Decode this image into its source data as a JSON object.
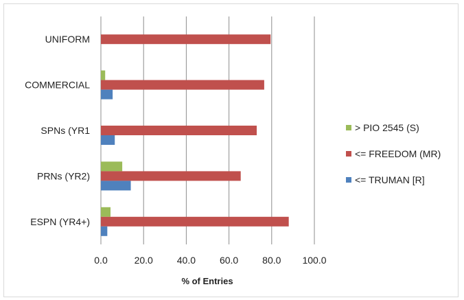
{
  "chart_data": {
    "type": "bar",
    "orientation": "horizontal",
    "categories": [
      "UNIFORM",
      "COMMERCIAL",
      "SPNs (YR1",
      "PRNs (YR2)",
      "ESPN (YR4+)"
    ],
    "series": [
      {
        "name": "> PIO 2545 (S)",
        "color": "#9bbb59",
        "values": [
          0,
          2,
          0,
          10,
          4.5
        ]
      },
      {
        "name": "<= FREEDOM (MR)",
        "color": "#c0504d",
        "values": [
          79.5,
          76.5,
          73,
          65.5,
          88
        ]
      },
      {
        "name": "<= TRUMAN [R]",
        "color": "#4f81bd",
        "values": [
          0,
          5.5,
          6.5,
          14,
          3
        ]
      }
    ],
    "xlabel": "% of Entries",
    "xlim": [
      0,
      100
    ],
    "xticks": [
      "0.0",
      "20.0",
      "40.0",
      "60.0",
      "80.0",
      "100.0"
    ],
    "grid": "vertical",
    "legend_position": "right"
  }
}
